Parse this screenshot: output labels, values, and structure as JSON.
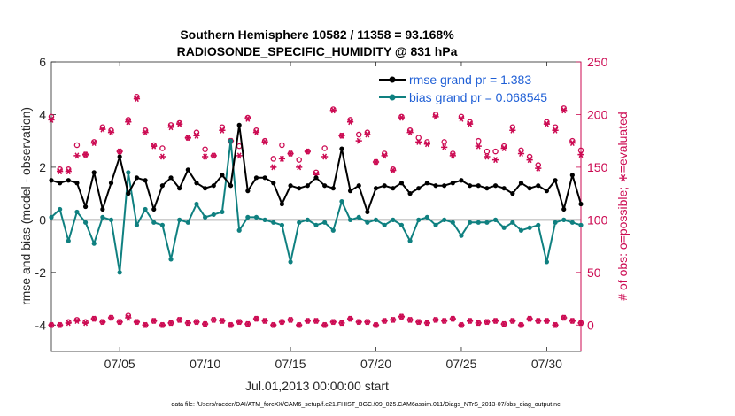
{
  "chart_data": {
    "type": "line",
    "title": "Southern Hemisphere 10582 / 11358 = 93.168%",
    "subtitle": "RADIOSONDE_SPECIFIC_HUMIDITY @ 831 hPa",
    "xlabel": "Jul.01,2013 00:00:00 start",
    "ylabel": "rmse and bias (model - observation)",
    "y2label": "# of obs: o=possible; ∗=evaluated",
    "footnote": "data file: /Users/raeder/DAI/ATM_forcXX/CAM6_setup/f.e21.FHIST_BGC.f09_025.CAM6assim.011/Diags_NTrS_2013-07/obs_diag_output.nc",
    "xlim": [
      1,
      32
    ],
    "ylim": [
      -5,
      6
    ],
    "y2lim": [
      -25,
      250
    ],
    "x_ticks": [
      5,
      10,
      15,
      20,
      25,
      30
    ],
    "x_tick_labels": [
      "07/05",
      "07/10",
      "07/15",
      "07/20",
      "07/25",
      "07/30"
    ],
    "y_ticks": [
      -4,
      -2,
      0,
      2,
      4,
      6
    ],
    "y_tick_labels": [
      "-4",
      "-2",
      "0",
      "2",
      "4",
      "6"
    ],
    "y2_ticks": [
      0,
      50,
      100,
      150,
      200,
      250
    ],
    "y2_tick_labels": [
      "0",
      "50",
      "100",
      "150",
      "200",
      "250"
    ],
    "colors": {
      "rmse": "#000000",
      "bias": "#0f8080",
      "obs": "#cc0a52",
      "legend_text": "#1f5fd6",
      "zero_line": "#b0b0b0"
    },
    "x": [
      1.0,
      1.5,
      2.0,
      2.5,
      3.0,
      3.5,
      4.0,
      4.5,
      5.0,
      5.5,
      6.0,
      6.5,
      7.0,
      7.5,
      8.0,
      8.5,
      9.0,
      9.5,
      10.0,
      10.5,
      11.0,
      11.5,
      12.0,
      12.5,
      13.0,
      13.5,
      14.0,
      14.5,
      15.0,
      15.5,
      16.0,
      16.5,
      17.0,
      17.5,
      18.0,
      18.5,
      19.0,
      19.5,
      20.0,
      20.5,
      21.0,
      21.5,
      22.0,
      22.5,
      23.0,
      23.5,
      24.0,
      24.5,
      25.0,
      25.5,
      26.0,
      26.5,
      27.0,
      27.5,
      28.0,
      28.5,
      29.0,
      29.5,
      30.0,
      30.5,
      31.0,
      31.5,
      32.0
    ],
    "series": [
      {
        "name": "rmse grand pr = 1.383",
        "values": [
          1.5,
          1.4,
          1.5,
          1.4,
          0.5,
          1.8,
          0.4,
          1.4,
          2.4,
          1.0,
          1.6,
          1.5,
          0.4,
          1.3,
          1.6,
          1.2,
          1.9,
          1.4,
          1.2,
          1.3,
          1.7,
          1.3,
          3.6,
          1.1,
          1.6,
          1.6,
          1.4,
          0.6,
          1.3,
          1.2,
          1.3,
          1.6,
          1.3,
          1.2,
          2.7,
          1.1,
          1.3,
          0.3,
          1.2,
          1.3,
          1.2,
          1.4,
          1.0,
          1.2,
          1.4,
          1.3,
          1.3,
          1.4,
          1.5,
          1.3,
          1.3,
          1.2,
          1.3,
          1.2,
          1.0,
          1.4,
          1.2,
          1.3,
          1.1,
          1.5,
          0.4,
          1.7,
          0.6
        ]
      },
      {
        "name": "bias grand pr = 0.068545",
        "values": [
          0.1,
          0.4,
          -0.8,
          0.3,
          -0.1,
          -0.9,
          0.1,
          0.0,
          -2.0,
          1.8,
          -0.2,
          0.4,
          -0.1,
          -0.2,
          -1.5,
          0.0,
          -0.1,
          0.6,
          0.1,
          0.2,
          0.3,
          3.0,
          -0.4,
          0.1,
          0.1,
          0.0,
          -0.1,
          -0.2,
          -1.6,
          -0.1,
          0.0,
          -0.2,
          -0.1,
          -0.4,
          0.7,
          0.0,
          0.1,
          -0.1,
          0.0,
          -0.2,
          0.0,
          -0.2,
          -0.8,
          0.0,
          0.1,
          -0.2,
          0.0,
          -0.1,
          -0.6,
          -0.1,
          -0.1,
          -0.1,
          0.0,
          -0.3,
          -0.1,
          -0.4,
          -0.3,
          -0.2,
          -1.6,
          -0.1,
          0.0,
          -0.1,
          -0.2
        ]
      },
      {
        "name": "possible",
        "values": [
          198,
          148,
          148,
          171,
          162,
          174,
          188,
          185,
          165,
          195,
          217,
          185,
          171,
          168,
          190,
          192,
          178,
          183,
          167,
          161,
          188,
          175,
          170,
          197,
          185,
          175,
          158,
          171,
          163,
          157,
          165,
          145,
          168,
          205,
          180,
          195,
          181,
          183,
          155,
          163,
          148,
          198,
          185,
          178,
          174,
          200,
          174,
          163,
          198,
          193,
          175,
          165,
          165,
          170,
          188,
          166,
          160,
          152,
          193,
          188,
          206,
          175,
          166
        ]
      },
      {
        "name": "evaluated",
        "values": [
          195,
          146,
          146,
          161,
          162,
          173,
          186,
          183,
          165,
          193,
          215,
          183,
          170,
          160,
          188,
          191,
          178,
          180,
          160,
          161,
          185,
          175,
          161,
          196,
          183,
          174,
          150,
          158,
          163,
          150,
          165,
          143,
          160,
          204,
          180,
          193,
          175,
          181,
          155,
          161,
          147,
          197,
          183,
          174,
          172,
          198,
          169,
          161,
          196,
          191,
          170,
          160,
          157,
          168,
          185,
          163,
          157,
          149,
          191,
          185,
          204,
          173,
          162
        ]
      },
      {
        "name": "possible_bottom",
        "values": [
          0,
          0,
          3,
          5,
          3,
          6,
          3,
          7,
          3,
          9,
          3,
          0,
          4,
          0,
          2,
          5,
          2,
          3,
          1,
          5,
          4,
          0,
          3,
          1,
          6,
          4,
          0,
          3,
          5,
          0,
          4,
          4,
          0,
          3,
          2,
          6,
          3,
          3,
          0,
          4,
          5,
          8,
          5,
          3,
          2,
          5,
          4,
          6,
          0,
          4,
          2,
          3,
          4,
          1,
          4,
          0,
          6,
          4,
          4,
          0,
          7,
          4,
          2
        ]
      },
      {
        "name": "evaluated_bottom",
        "values": [
          0,
          0,
          2,
          4,
          2,
          6,
          3,
          7,
          3,
          7,
          3,
          0,
          4,
          0,
          2,
          5,
          2,
          3,
          1,
          5,
          4,
          0,
          3,
          1,
          6,
          4,
          0,
          3,
          5,
          0,
          4,
          4,
          0,
          3,
          2,
          6,
          3,
          3,
          0,
          4,
          5,
          8,
          5,
          3,
          2,
          5,
          4,
          6,
          0,
          4,
          2,
          3,
          4,
          1,
          4,
          0,
          6,
          4,
          4,
          0,
          7,
          4,
          2
        ]
      }
    ]
  }
}
